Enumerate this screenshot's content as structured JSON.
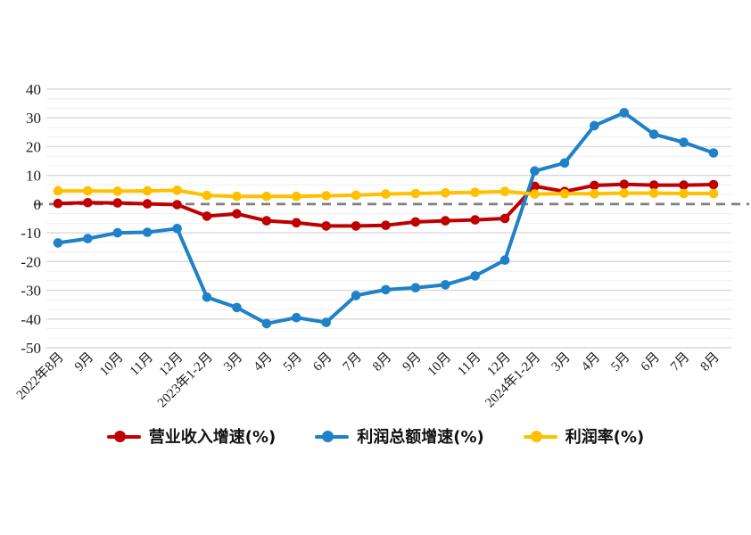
{
  "chart_data": {
    "type": "line",
    "title": "",
    "xlabel": "",
    "ylabel": "",
    "ylim": [
      -50,
      40
    ],
    "yticks": [
      40,
      30,
      20,
      10,
      0,
      -10,
      -20,
      -30,
      -40,
      -50
    ],
    "grid": "horizontal-major-and-minor",
    "zero_line": "dashed-gray",
    "legend_position": "bottom-center",
    "categories": [
      "2022年8月",
      "9月",
      "10月",
      "11月",
      "12月",
      "2023年1-2月",
      "3月",
      "4月",
      "5月",
      "6月",
      "7月",
      "8月",
      "9月",
      "10月",
      "11月",
      "12月",
      "2024年1-2月",
      "3月",
      "4月",
      "5月",
      "6月",
      "7月",
      "8月"
    ],
    "series": [
      {
        "name": "营业收入增速(%)",
        "color": "#C00000",
        "values": [
          0.2,
          0.5,
          0.4,
          0.1,
          -0.2,
          -4.2,
          -3.4,
          -5.8,
          -6.5,
          -7.6,
          -7.6,
          -7.4,
          -6.2,
          -5.8,
          -5.5,
          -5.0,
          6.2,
          4.4,
          6.5,
          6.9,
          6.6,
          6.6,
          6.8
        ]
      },
      {
        "name": "利润总额增速(%)",
        "color": "#1F81C8",
        "values": [
          -13.5,
          -12.0,
          -10.0,
          -9.8,
          -8.5,
          -32.4,
          -36.0,
          -41.6,
          -39.5,
          -41.2,
          -31.8,
          -29.8,
          -29.1,
          -28.1,
          -25.0,
          -19.5,
          11.5,
          14.3,
          27.3,
          31.8,
          24.3,
          21.5,
          17.8
        ]
      },
      {
        "name": "利润率(%)",
        "color": "#FFC000",
        "values": [
          4.6,
          4.6,
          4.5,
          4.6,
          4.8,
          3.0,
          2.7,
          2.7,
          2.7,
          2.9,
          3.1,
          3.5,
          3.7,
          3.9,
          4.1,
          4.4,
          3.5,
          3.6,
          3.6,
          3.8,
          3.8,
          3.7,
          3.7
        ]
      }
    ],
    "style": {
      "grid_major_color": "#d9d9d9",
      "grid_minor_color": "#efefef",
      "zero_line_color": "#7f7f7f",
      "background": "#ffffff"
    }
  }
}
